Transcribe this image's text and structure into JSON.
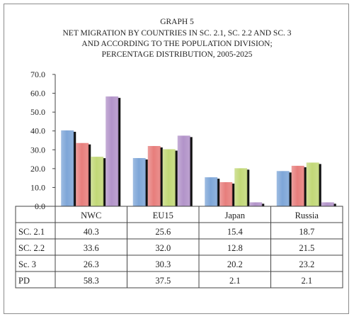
{
  "chart_data": {
    "type": "bar",
    "title_lines": [
      "GRAPH 5",
      "NET MIGRATION BY COUNTRIES IN SC. 2.1,  SC. 2.2 AND SC. 3",
      "AND ACCORDING TO THE POPULATION DIVISION;",
      "PERCENTAGE DISTRIBUTION, 2005-2025"
    ],
    "categories": [
      "NWC",
      "EU15",
      "Japan",
      "Russia"
    ],
    "ylim": [
      0,
      70
    ],
    "yticks": [
      "0.0",
      "10.0",
      "20.0",
      "30.0",
      "40.0",
      "50.0",
      "60.0",
      "70.0"
    ],
    "grid": false,
    "series": [
      {
        "name": "SC. 2.1",
        "values": [
          40.3,
          25.6,
          15.4,
          18.7
        ],
        "color": "#7ea6d8",
        "display": [
          "40.3",
          "25.6",
          "15.4",
          "18.7"
        ]
      },
      {
        "name": "SC. 2.2",
        "values": [
          33.6,
          32.0,
          12.8,
          21.5
        ],
        "color": "#e77e7c",
        "display": [
          "33.6",
          "32.0",
          "12.8",
          "21.5"
        ]
      },
      {
        "name": "Sc. 3",
        "values": [
          26.3,
          30.3,
          20.2,
          23.2
        ],
        "color": "#c2d877",
        "display": [
          "26.3",
          "30.3",
          "20.2",
          "23.2"
        ]
      },
      {
        "name": "PD",
        "values": [
          58.3,
          37.5,
          2.1,
          2.1
        ],
        "color": "#b293c9",
        "display": [
          "58.3",
          "37.5",
          "2.1",
          "2.1"
        ]
      }
    ]
  }
}
